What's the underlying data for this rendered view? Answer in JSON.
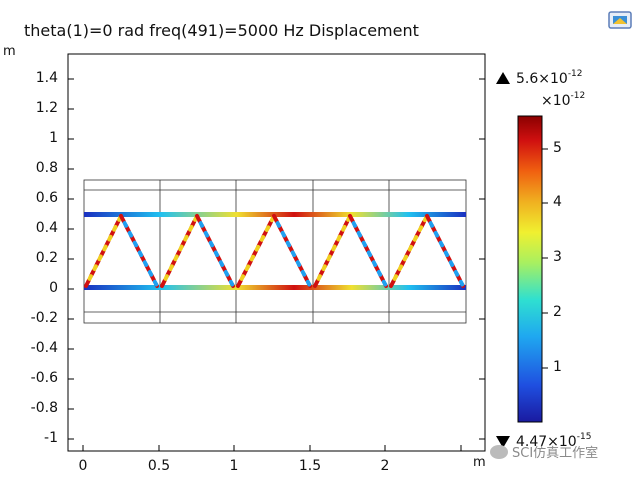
{
  "plot": {
    "title": "theta(1)=0 rad freq(491)=5000 Hz  Displacement",
    "y_unit": "m",
    "x_unit": "m",
    "y_ticks": [
      "1.4",
      "1.2",
      "1",
      "0.8",
      "0.6",
      "0.4",
      "0.2",
      "0",
      "-0.2",
      "-0.4",
      "-0.6",
      "-0.8",
      "-1"
    ],
    "x_ticks": [
      "0",
      "0.5",
      "1",
      "1.5",
      "2"
    ]
  },
  "colorbar": {
    "max_value": "5.6×10",
    "max_exp": "-12",
    "min_value": "4.47×10",
    "min_exp": "-15",
    "scale_base": "×10",
    "scale_exp": "-12",
    "ticks": [
      "5",
      "4",
      "3",
      "2",
      "1"
    ],
    "colormap": "rainbow",
    "max_marker_icon": "triangle-up-icon",
    "min_marker_icon": "triangle-down-icon"
  },
  "watermark": {
    "text": "SCI仿真工作室"
  },
  "colors": {
    "axes": "#000000",
    "beam_frame": "#222222",
    "colormap_low": "#1a1aa0",
    "colormap_high": "#8b0000"
  }
}
